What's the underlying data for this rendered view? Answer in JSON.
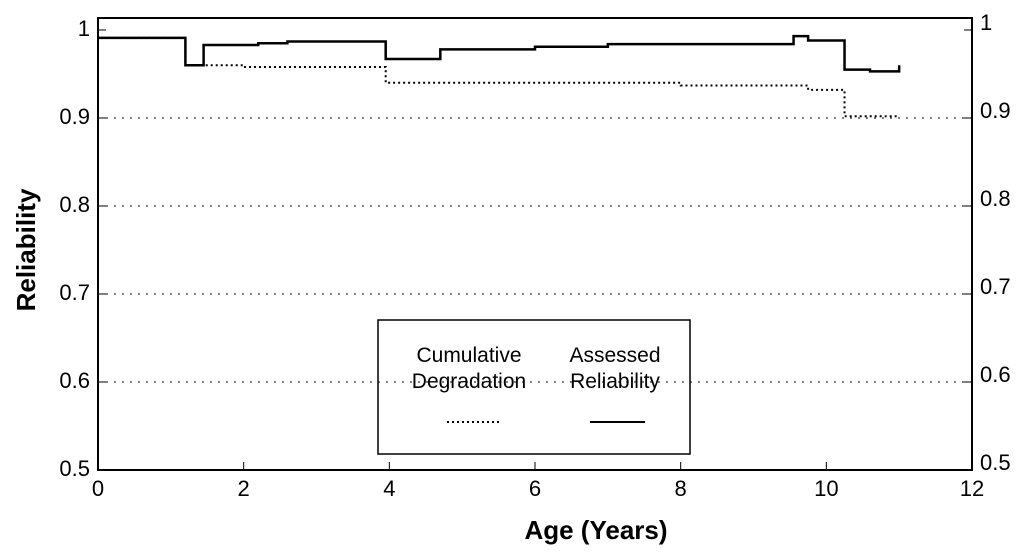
{
  "chart_data": {
    "type": "step",
    "xlabel": "Age (Years)",
    "ylabel": "Reliability",
    "xlim": [
      0,
      12
    ],
    "xticks": [
      0,
      2,
      4,
      6,
      8,
      10,
      12
    ],
    "ylim": [
      0.5,
      1
    ],
    "yticks": [
      0.5,
      0.6,
      0.7,
      0.8,
      0.9,
      1
    ],
    "y2lim": [
      0.5,
      1
    ],
    "y2ticks": [
      0.5,
      0.6,
      0.7,
      0.8,
      0.9,
      1
    ],
    "grid": true,
    "legend": "lower center",
    "series": [
      {
        "name": "Cumulative Degradation",
        "color": "#000000",
        "style": "dotted",
        "x": [
          0,
          1.2,
          2.0,
          3.95,
          8,
          9.75,
          10.25,
          11
        ],
        "values": [
          0.991,
          0.96,
          0.958,
          0.94,
          0.937,
          0.932,
          0.902,
          0.902
        ]
      },
      {
        "name": "Assessed Reliability",
        "color": "#000000",
        "style": "solid",
        "x": [
          0,
          1.2,
          1.45,
          2.2,
          2.6,
          3.95,
          4.7,
          6,
          7,
          9.55,
          9.75,
          10.25,
          10.6,
          11
        ],
        "values": [
          0.991,
          0.96,
          0.983,
          0.985,
          0.987,
          0.967,
          0.978,
          0.981,
          0.984,
          0.993,
          0.988,
          0.955,
          0.953,
          0.96
        ]
      }
    ]
  }
}
